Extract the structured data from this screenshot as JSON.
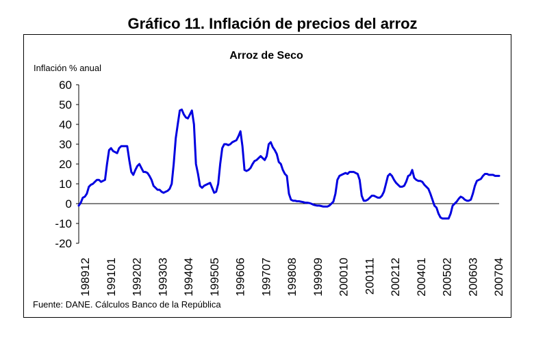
{
  "figure_title": "Gráfico 11. Inflación de precios del arroz",
  "source_note": "Fuente: DANE. Cálculos Banco de la República",
  "colors": {
    "series": "#0000e0",
    "axis": "#000000"
  },
  "chart_data": {
    "type": "line",
    "title": "Arroz de Seco",
    "ylabel": "Inflación % anual",
    "xlabel": "",
    "ylim": [
      -20,
      60
    ],
    "yticks": [
      60,
      50,
      40,
      30,
      20,
      10,
      0,
      -10,
      -20
    ],
    "xticks": [
      "198912",
      "199101",
      "199202",
      "199303",
      "199404",
      "199505",
      "199606",
      "199707",
      "199808",
      "199909",
      "200010",
      "200111",
      "200212",
      "200401",
      "200502",
      "200603",
      "200704"
    ],
    "grid": false,
    "series": [
      {
        "name": "Arroz de Seco",
        "x": [
          0,
          1,
          2,
          3,
          4,
          5,
          6,
          7,
          8,
          9,
          10,
          11,
          12,
          13,
          14,
          15,
          16,
          17,
          18,
          19,
          20,
          21,
          22,
          23,
          24,
          25,
          26,
          27,
          28,
          29,
          30,
          31,
          32,
          33,
          34,
          35,
          36,
          37,
          38,
          39,
          40,
          41,
          42,
          43,
          44,
          45,
          46,
          47,
          48,
          49,
          50,
          51,
          52,
          53,
          54,
          55,
          56,
          57,
          58,
          59,
          60,
          61,
          62,
          63,
          64,
          65,
          66,
          67,
          68,
          69,
          70,
          71,
          72,
          73,
          74,
          75,
          76,
          77,
          78,
          79,
          80,
          81,
          82,
          83,
          84,
          85,
          86,
          87,
          88,
          89,
          90,
          91,
          92,
          93,
          94,
          95,
          96,
          97,
          98,
          99,
          100,
          101,
          102,
          103,
          104,
          105,
          106,
          107,
          108,
          109,
          110,
          111,
          112,
          113,
          114,
          115,
          116,
          117,
          118,
          119,
          120,
          121,
          122,
          123,
          124,
          125,
          126,
          127,
          128,
          129,
          130,
          131,
          132,
          133,
          134,
          135,
          136,
          137,
          138,
          139,
          140,
          141,
          142,
          143,
          144,
          145,
          146,
          147,
          148,
          149,
          150,
          151,
          152,
          153,
          154,
          155,
          156,
          157,
          158,
          159,
          160,
          161,
          162,
          163,
          164,
          165,
          166,
          167,
          168,
          169,
          170,
          171,
          172,
          173,
          174,
          175,
          176,
          177,
          178,
          179,
          180,
          181,
          182,
          183,
          184,
          185,
          186,
          187,
          188,
          189,
          190,
          191,
          192,
          193,
          194,
          195,
          196,
          197,
          198,
          199,
          200,
          201,
          202,
          203,
          204,
          205,
          206,
          207,
          208
        ],
        "values": [
          -1,
          0.5,
          3,
          3.5,
          5,
          8.5,
          9.5,
          10,
          11,
          12,
          12,
          11,
          11.5,
          12,
          20,
          27,
          28,
          26.5,
          26,
          25.5,
          28,
          29,
          29,
          29,
          29,
          22,
          16,
          14.5,
          17,
          19,
          20,
          18,
          16,
          16,
          15.5,
          14,
          12,
          9,
          8,
          7,
          7,
          6,
          5.5,
          6,
          6.5,
          7.5,
          10,
          20,
          33,
          40,
          47,
          47.5,
          45,
          43.5,
          43,
          45,
          47,
          40,
          20,
          15,
          9,
          8,
          9,
          9.5,
          10,
          10.5,
          8,
          5.5,
          6,
          10,
          20,
          28,
          30,
          30,
          29.5,
          30,
          31,
          31.5,
          32,
          34,
          36.5,
          29,
          17,
          16.5,
          17,
          18,
          20,
          21.5,
          22,
          23,
          24,
          23,
          22,
          24,
          30,
          31,
          28.5,
          27,
          25,
          21,
          20,
          17,
          15,
          14,
          5,
          2,
          1.5,
          1.5,
          1.2,
          1.2,
          1,
          0.8,
          0.5,
          0.5,
          0.3,
          0,
          -0.5,
          -0.8,
          -1,
          -1,
          -1.2,
          -1.5,
          -1.5,
          -1.5,
          -1,
          0,
          1,
          5,
          12,
          14,
          14.5,
          15,
          15.5,
          15,
          16,
          16,
          16,
          15.5,
          15,
          12,
          4,
          1.5,
          1.5,
          2,
          3,
          4,
          4,
          3.5,
          3,
          3,
          4,
          6,
          10,
          14,
          15,
          14,
          12,
          10.5,
          9.5,
          8.5,
          8.5,
          9,
          11,
          14,
          14.5,
          17,
          13,
          12,
          11.5,
          11.5,
          11,
          9.5,
          8.5,
          7.5,
          5,
          2,
          -1,
          -2,
          -5,
          -7,
          -7.5,
          -7.5,
          -7.5,
          -7.5,
          -5,
          -1,
          0,
          1,
          2.5,
          3.5,
          3,
          2,
          1.5,
          1.5,
          2,
          5,
          9,
          11.5,
          12,
          12.5,
          14,
          15,
          15,
          14.5,
          14.5,
          14.5,
          14,
          14,
          14
        ]
      }
    ]
  }
}
